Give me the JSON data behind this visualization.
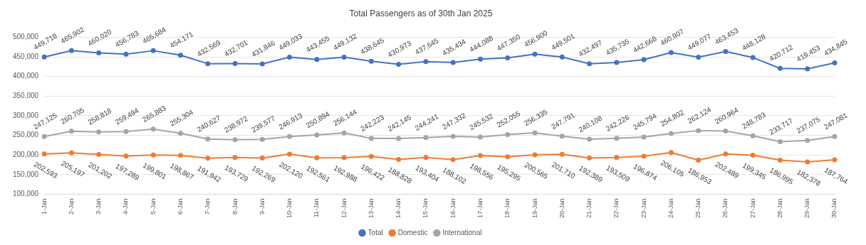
{
  "chart_data": {
    "type": "line",
    "title": "Total Passengers as of 30th Jan 2025",
    "categories": [
      "1-Jan",
      "2-Jan",
      "3-Jan",
      "4-Jan",
      "5-Jan",
      "6-Jan",
      "7-Jan",
      "8-Jan",
      "9-Jan",
      "10-Jan",
      "11-Jan",
      "12-Jan",
      "13-Jan",
      "14-Jan",
      "15-Jan",
      "16-Jan",
      "17-Jan",
      "18-Jan",
      "19-Jan",
      "20-Jan",
      "21-Jan",
      "22-Jan",
      "23-Jan",
      "24-Jan",
      "25-Jan",
      "26-Jan",
      "27-Jan",
      "28-Jan",
      "29-Jan",
      "30-Jan"
    ],
    "series": [
      {
        "name": "Total",
        "color": "#4472c4",
        "values": [
          449718,
          465902,
          460020,
          456783,
          465684,
          454171,
          432569,
          432701,
          431846,
          449033,
          443455,
          449132,
          438645,
          430973,
          437645,
          435434,
          444088,
          447350,
          456900,
          449501,
          432497,
          435735,
          442668,
          460907,
          449077,
          463453,
          448128,
          420712,
          419453,
          434845
        ],
        "value_labels": [
          "449,718",
          "465,902",
          "460,020",
          "456,783",
          "465,684",
          "454,171",
          "432,569",
          "432,701",
          "431,846",
          "449,033",
          "443,455",
          "449,132",
          "438,645",
          "430,973",
          "437,645",
          "435,434",
          "444,088",
          "447,350",
          "456,900",
          "449,501",
          "432,497",
          "435,735",
          "442,668",
          "460,907",
          "449,077",
          "463,453",
          "448,128",
          "420,712",
          "419,453",
          "434,845"
        ]
      },
      {
        "name": "Domestic",
        "color": "#ed7d31",
        "values": [
          202593,
          205197,
          201202,
          197289,
          199801,
          198867,
          191942,
          193729,
          192269,
          202120,
          192561,
          192988,
          196422,
          188828,
          193404,
          188102,
          198556,
          195295,
          200565,
          201710,
          192389,
          193509,
          196874,
          206105,
          186953,
          202489,
          199345,
          186995,
          182378,
          187764
        ],
        "value_labels": [
          "202,593",
          "205,197",
          "201,202",
          "197,289",
          "199,801",
          "198,867",
          "191,942",
          "193,729",
          "192,269",
          "202,120",
          "192,561",
          "192,988",
          "196,422",
          "188,828",
          "193,404",
          "188,102",
          "198,556",
          "195,295",
          "200,565",
          "201,710",
          "192,389",
          "193,509",
          "196,874",
          "206,105",
          "186,953",
          "202,489",
          "199,345",
          "186,995",
          "182,378",
          "187,764"
        ]
      },
      {
        "name": "International",
        "color": "#a5a5a5",
        "values": [
          247125,
          260705,
          258818,
          259494,
          265883,
          255304,
          240627,
          238972,
          239577,
          246913,
          250894,
          256144,
          242223,
          242145,
          244241,
          247332,
          245532,
          252055,
          256335,
          247791,
          240108,
          242226,
          245794,
          254802,
          262124,
          260964,
          248783,
          233717,
          237075,
          247081
        ],
        "value_labels": [
          "247,125",
          "260,705",
          "258,818",
          "259,494",
          "265,883",
          "255,304",
          "240,627",
          "238,972",
          "239,577",
          "246,913",
          "250,894",
          "256,144",
          "242,223",
          "242,145",
          "244,241",
          "247,332",
          "245,532",
          "252,055",
          "256,335",
          "247,791",
          "240,108",
          "242,226",
          "245,794",
          "254,802",
          "262,124",
          "260,964",
          "248,783",
          "233,717",
          "237,075",
          "247,081"
        ]
      }
    ],
    "ylim": [
      100000,
      500000
    ],
    "yticks": [
      {
        "value": 100000,
        "label": "100,000"
      },
      {
        "value": 150000,
        "label": "150,000"
      },
      {
        "value": 200000,
        "label": "200,000"
      },
      {
        "value": 250000,
        "label": "250,000"
      },
      {
        "value": 300000,
        "label": "300,000"
      },
      {
        "value": 350000,
        "label": "350,000"
      },
      {
        "value": 400000,
        "label": "400,000"
      },
      {
        "value": 450000,
        "label": "450,000"
      },
      {
        "value": 500000,
        "label": "500,000"
      }
    ],
    "grid": "y",
    "legend": "bottom",
    "marker": "circle",
    "line_style": "solid"
  }
}
